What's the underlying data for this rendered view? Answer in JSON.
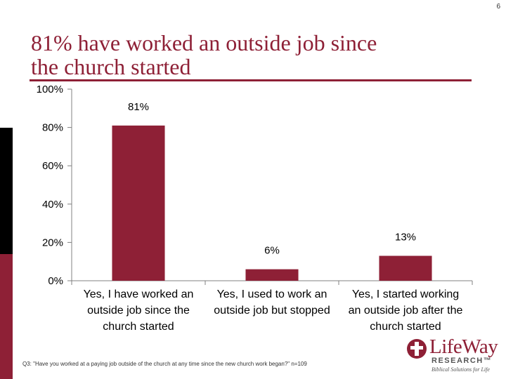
{
  "page_number": "6",
  "title_line1": "81% have worked an outside job since",
  "title_line2": "the church started",
  "footnote": "Q3: \"Have you worked at a paying job outside of the church at any time since the new church work began?\" n=109",
  "logo": {
    "name": "LifeWay",
    "sub": "RESEARCH™",
    "tagline": "Biblical Solutions for Life"
  },
  "colors": {
    "bar": "#8e2036",
    "accent": "#8e2036",
    "axis": "#808080"
  },
  "chart_data": {
    "type": "bar",
    "categories": [
      [
        "Yes, I have worked an",
        "outside job since the",
        "church started"
      ],
      [
        "Yes, I used to work an",
        "outside job but stopped",
        ""
      ],
      [
        "Yes, I started working",
        "an outside job after the",
        "church started"
      ]
    ],
    "values": [
      81,
      6,
      13
    ],
    "data_labels": [
      "81%",
      "6%",
      "13%"
    ],
    "yticks": [
      "0%",
      "20%",
      "40%",
      "60%",
      "80%",
      "100%"
    ],
    "ylim": [
      0,
      100
    ],
    "grid": false
  }
}
